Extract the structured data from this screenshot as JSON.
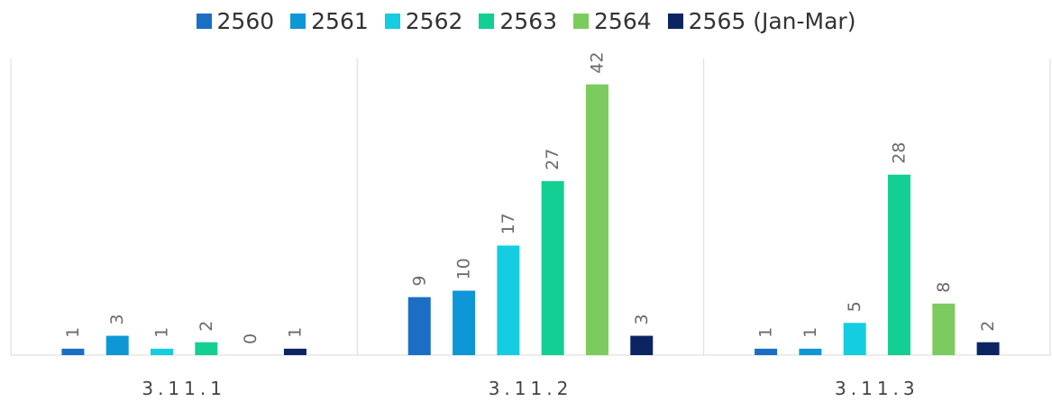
{
  "chart_data": {
    "type": "bar",
    "categories": [
      "3.11.1",
      "3.11.2",
      "3.11.3"
    ],
    "series": [
      {
        "name": "2560",
        "color": "#1a6fc4",
        "values": [
          1,
          9,
          1
        ]
      },
      {
        "name": "2561",
        "color": "#0e97d6",
        "values": [
          3,
          10,
          1
        ]
      },
      {
        "name": "2562",
        "color": "#14cde0",
        "values": [
          1,
          17,
          5
        ]
      },
      {
        "name": "2563",
        "color": "#14cf93",
        "values": [
          2,
          27,
          28
        ]
      },
      {
        "name": "2564",
        "color": "#7ccb5e",
        "values": [
          0,
          42,
          8
        ]
      },
      {
        "name": "2565 (Jan-Mar)",
        "color": "#0c2461",
        "values": [
          1,
          3,
          2
        ]
      }
    ],
    "ylim": [
      0,
      46
    ],
    "grid": false,
    "legend_position": "top-center",
    "value_labels": "rotated",
    "category_separators": true
  }
}
